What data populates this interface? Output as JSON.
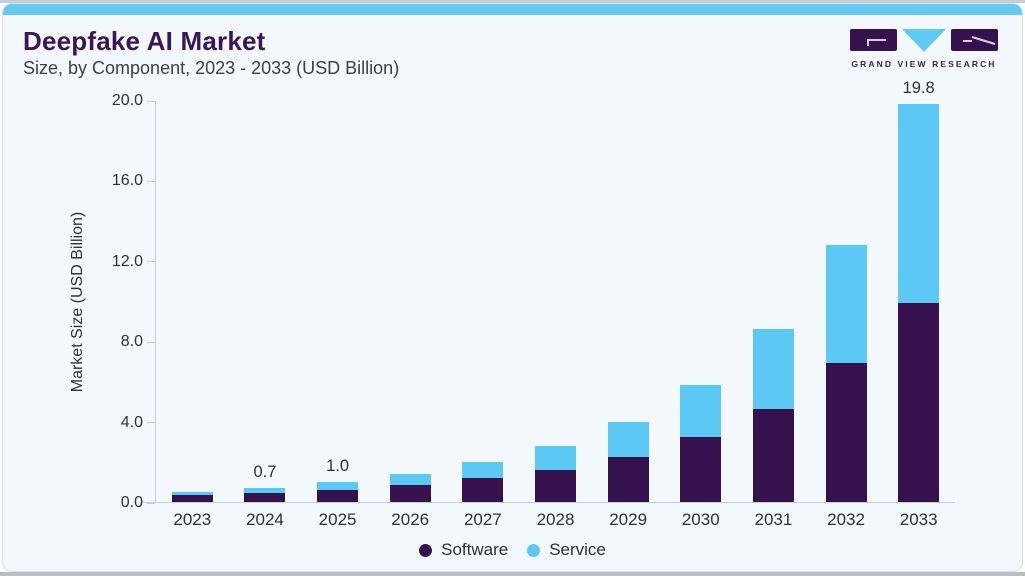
{
  "header": {
    "title": "Deepfake AI Market",
    "subtitle": "Size, by Component, 2023 - 2033 (USD Billion)",
    "logo_text": "GRAND VIEW RESEARCH"
  },
  "colors": {
    "software": "#35124d",
    "service": "#5bc9f3",
    "accent_strip": "#63caf3",
    "card_background": "#f2f8fc",
    "axis_line": "#c8ced6",
    "title_text": "#3a1659",
    "body_text": "#2d3237"
  },
  "chart_data": {
    "type": "bar",
    "stacked": true,
    "title": "Deepfake AI Market",
    "subtitle": "Size, by Component, 2023 - 2033 (USD Billion)",
    "xlabel": "",
    "ylabel": "Market Size (USD Billion)",
    "ylim": [
      0,
      20
    ],
    "yticks": [
      "0.0",
      "4.0",
      "8.0",
      "12.0",
      "16.0",
      "20.0"
    ],
    "grid": false,
    "legend_position": "bottom",
    "categories": [
      "2023",
      "2024",
      "2025",
      "2026",
      "2027",
      "2028",
      "2029",
      "2030",
      "2031",
      "2032",
      "2033"
    ],
    "series": [
      {
        "name": "Software",
        "color": "#35124d",
        "values": [
          0.33,
          0.45,
          0.62,
          0.85,
          1.18,
          1.6,
          2.25,
          3.25,
          4.65,
          6.9,
          9.9
        ]
      },
      {
        "name": "Service",
        "color": "#5bc9f3",
        "values": [
          0.17,
          0.25,
          0.38,
          0.55,
          0.82,
          1.2,
          1.75,
          2.55,
          3.95,
          5.9,
          9.9
        ]
      }
    ],
    "totals": [
      0.5,
      0.7,
      1.0,
      1.4,
      2.0,
      2.8,
      4.0,
      5.8,
      8.6,
      12.8,
      19.8
    ],
    "bar_labels": [
      "",
      "0.7",
      "1.0",
      "",
      "",
      "",
      "",
      "",
      "",
      "",
      "19.8"
    ]
  }
}
